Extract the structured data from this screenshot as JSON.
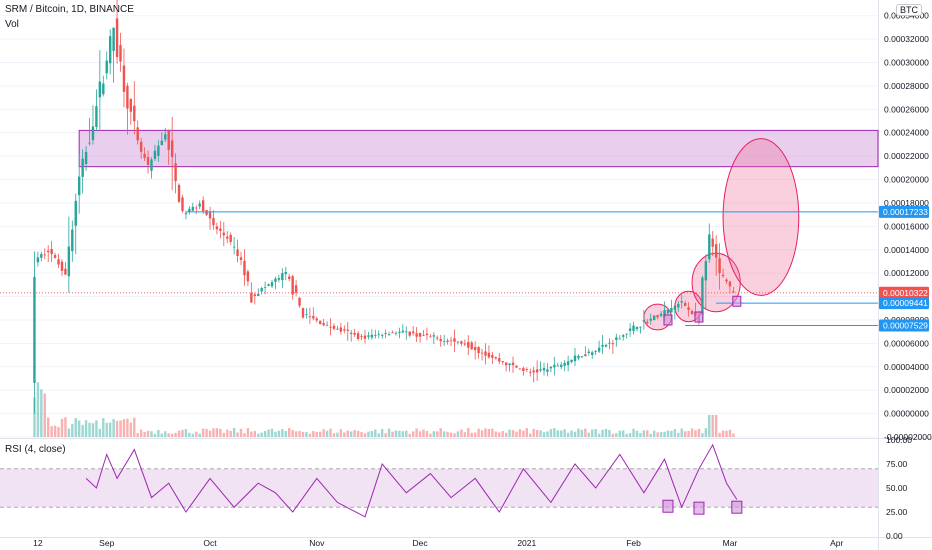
{
  "header": {
    "symbol_line": "SRM / Bitcoin, 1D, BINANCE",
    "volume_label": "Vol",
    "currency_button": "BTC",
    "rsi_label": "RSI (4, close)"
  },
  "price_axis": {
    "ticks": [
      "0.00034000",
      "0.00032000",
      "0.00030000",
      "0.00028000",
      "0.00026000",
      "0.00024000",
      "0.00022000",
      "0.00020000",
      "0.00018000",
      "0.00016000",
      "0.00014000",
      "0.00012000",
      "0.00010000",
      "0.00008000",
      "0.00006000",
      "0.00004000",
      "0.00002000",
      "0.00000000",
      "-0.00002000"
    ],
    "badges": [
      {
        "text": "0.00017233",
        "color": "#2196f3"
      },
      {
        "text": "0.00010322",
        "color": "#ef5350"
      },
      {
        "text": "05:56:30",
        "color": "#ef5350"
      },
      {
        "text": "0.00009441",
        "color": "#2196f3"
      },
      {
        "text": "0.00007529",
        "color": "#2196f3"
      }
    ]
  },
  "rsi_axis": {
    "ticks": [
      "100.00",
      "75.00",
      "50.00",
      "25.00",
      "0.00"
    ]
  },
  "time_axis": {
    "ticks": [
      "12",
      "Sep",
      "Oct",
      "Nov",
      "Dec",
      "2021",
      "Feb",
      "Mar",
      "Apr"
    ]
  },
  "colors": {
    "up": "#26a69a",
    "down": "#ef5350",
    "rsi_line": "#9c27b0",
    "zone": "#ce93d8",
    "hline": "#2196f3",
    "ellipse": "#f06292"
  },
  "chart_data": {
    "type": "candlestick",
    "x_unit": "date",
    "price_ylim": [
      -2e-05,
      0.00035
    ],
    "rsi_ylim": [
      0,
      100
    ],
    "price_path": [
      [
        "2020-08-11",
        0.0
      ],
      [
        "2020-08-12",
        0.00013
      ],
      [
        "2020-08-16",
        0.00014
      ],
      [
        "2020-08-21",
        0.00012
      ],
      [
        "2020-08-25",
        0.0002
      ],
      [
        "2020-08-29",
        0.00025
      ],
      [
        "2020-09-01",
        0.00029
      ],
      [
        "2020-09-04",
        0.00033
      ],
      [
        "2020-09-07",
        0.00028
      ],
      [
        "2020-09-11",
        0.00023
      ],
      [
        "2020-09-14",
        0.00021
      ],
      [
        "2020-09-19",
        0.00024
      ],
      [
        "2020-09-24",
        0.00017
      ],
      [
        "2020-09-29",
        0.00018
      ],
      [
        "2020-10-03",
        0.00016
      ],
      [
        "2020-10-07",
        0.00015
      ],
      [
        "2020-10-11",
        0.00013
      ],
      [
        "2020-10-14",
        0.0001
      ],
      [
        "2020-10-19",
        0.00011
      ],
      [
        "2020-10-24",
        0.00012
      ],
      [
        "2020-10-29",
        8.5e-05
      ],
      [
        "2020-11-05",
        7.5e-05
      ],
      [
        "2020-11-15",
        6.5e-05
      ],
      [
        "2020-11-25",
        7e-05
      ],
      [
        "2020-12-05",
        6.5e-05
      ],
      [
        "2020-12-15",
        6e-05
      ],
      [
        "2020-12-25",
        4.5e-05
      ],
      [
        "2021-01-03",
        3.5e-05
      ],
      [
        "2021-01-10",
        4e-05
      ],
      [
        "2021-01-18",
        5e-05
      ],
      [
        "2021-01-26",
        6e-05
      ],
      [
        "2021-02-03",
        7.5e-05
      ],
      [
        "2021-02-10",
        8.5e-05
      ],
      [
        "2021-02-16",
        9.5e-05
      ],
      [
        "2021-02-21",
        8e-05
      ],
      [
        "2021-02-24",
        0.00015
      ],
      [
        "2021-02-27",
        0.00012
      ],
      [
        "2021-03-03",
        0.00010322
      ]
    ],
    "rsi_path": [
      [
        "2020-08-26",
        60
      ],
      [
        "2020-08-29",
        50
      ],
      [
        "2020-09-01",
        85
      ],
      [
        "2020-09-04",
        60
      ],
      [
        "2020-09-09",
        90
      ],
      [
        "2020-09-14",
        40
      ],
      [
        "2020-09-19",
        55
      ],
      [
        "2020-09-24",
        25
      ],
      [
        "2020-10-01",
        60
      ],
      [
        "2020-10-08",
        30
      ],
      [
        "2020-10-15",
        55
      ],
      [
        "2020-10-20",
        45
      ],
      [
        "2020-10-25",
        25
      ],
      [
        "2020-11-01",
        60
      ],
      [
        "2020-11-07",
        35
      ],
      [
        "2020-11-15",
        20
      ],
      [
        "2020-11-20",
        75
      ],
      [
        "2020-11-27",
        45
      ],
      [
        "2020-12-04",
        65
      ],
      [
        "2020-12-10",
        40
      ],
      [
        "2020-12-17",
        60
      ],
      [
        "2020-12-24",
        25
      ],
      [
        "2020-12-31",
        70
      ],
      [
        "2021-01-08",
        35
      ],
      [
        "2021-01-15",
        75
      ],
      [
        "2021-01-21",
        50
      ],
      [
        "2021-01-28",
        85
      ],
      [
        "2021-02-04",
        45
      ],
      [
        "2021-02-10",
        80
      ],
      [
        "2021-02-15",
        30
      ],
      [
        "2021-02-20",
        70
      ],
      [
        "2021-02-24",
        95
      ],
      [
        "2021-02-28",
        55
      ],
      [
        "2021-03-03",
        38
      ]
    ],
    "resistance_zone": [
      0.000211,
      0.000242
    ],
    "zone_start": "2020-08-24",
    "horizontal_lines": [
      {
        "value": 0.00017233,
        "start": "2020-09-24"
      },
      {
        "value": 9.441e-05,
        "start": "2021-02-25"
      },
      {
        "value": 7.529e-05,
        "start": "2021-02-16"
      }
    ],
    "last_price": 0.00010322,
    "rsi_band": [
      30,
      70
    ],
    "ellipses": [
      {
        "cx": "2021-02-08",
        "cy": 8.25e-05,
        "rx_days": 4,
        "ry": 1.1e-05
      },
      {
        "cx": "2021-02-17",
        "cy": 9.15e-05,
        "rx_days": 4,
        "ry": 1.3e-05
      },
      {
        "cx": "2021-02-25",
        "cy": 0.000112,
        "rx_days": 7,
        "ry": 2.5e-05
      },
      {
        "cx": "2021-03-10",
        "cy": 0.000168,
        "rx_days": 11,
        "ry": 6.7e-05
      }
    ],
    "price_markers": [
      {
        "date": "2021-02-11",
        "value": 8e-05
      },
      {
        "date": "2021-02-20",
        "value": 8.25e-05
      },
      {
        "date": "2021-03-03",
        "value": 9.6e-05
      }
    ],
    "rsi_markers": [
      {
        "date": "2021-02-11",
        "value": 31
      },
      {
        "date": "2021-02-20",
        "value": 29
      },
      {
        "date": "2021-03-03",
        "value": 30
      }
    ]
  }
}
